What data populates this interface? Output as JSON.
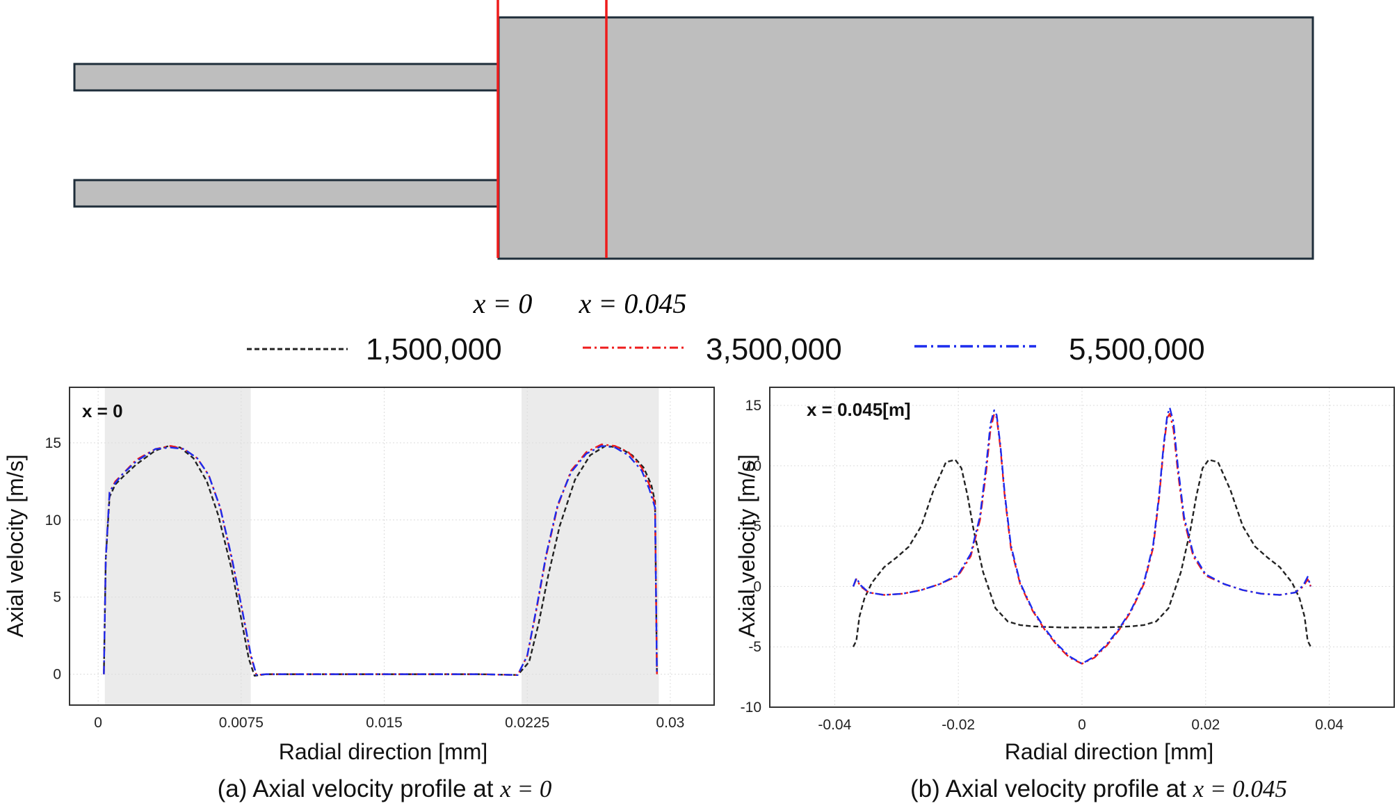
{
  "diagram": {
    "label_x0": "x = 0",
    "label_x045": "x = 0.045",
    "fill_color": "#bebebe",
    "outline_color": "#1e2d3a",
    "section_line_color": "#ee1c1c"
  },
  "legend": {
    "entries": [
      {
        "label": "1,500,000",
        "color": "#222222",
        "dash": "dashed"
      },
      {
        "label": "3,500,000",
        "color": "#ee1c1c",
        "dash": "dash-dot"
      },
      {
        "label": "5,500,000",
        "color": "#1c2cee",
        "dash": "dash-dot"
      }
    ]
  },
  "chart_data": [
    {
      "type": "line",
      "caption_prefix": "(a) Axial velocity profile at ",
      "caption_math": "x = 0",
      "inset_label": "x = 0",
      "xlabel": "Radial direction [mm]",
      "ylabel": "Axial velocity [m/s]",
      "xlim": [
        -0.0015,
        0.0323
      ],
      "ylim": [
        -2,
        18.6
      ],
      "xticks": [
        0,
        0.0075,
        0.015,
        0.0225,
        0.03
      ],
      "xtick_labels": [
        "0",
        "0.0075",
        "0.015",
        "0.0225",
        "0.03"
      ],
      "yticks": [
        0,
        5,
        10,
        15
      ],
      "ytick_labels": [
        "0",
        "5",
        "10",
        "15"
      ],
      "shaded_regions": [
        [
          0.00035,
          0.008
        ],
        [
          0.0222,
          0.0294
        ]
      ],
      "series": [
        {
          "name": "1,500,000",
          "color": "#222222",
          "dash": "dashed",
          "x": [
            0.0003,
            0.0004,
            0.0006,
            0.0009,
            0.0013,
            0.002,
            0.003,
            0.0037,
            0.0043,
            0.005,
            0.0057,
            0.0063,
            0.007,
            0.0075,
            0.0079,
            0.0082,
            0.0088,
            0.012,
            0.016,
            0.02,
            0.022,
            0.0226,
            0.0231,
            0.0236,
            0.0242,
            0.025,
            0.0258,
            0.0266,
            0.0273,
            0.028,
            0.0286,
            0.029,
            0.0292,
            0.0293
          ],
          "y": [
            0,
            7.5,
            11.5,
            12.3,
            12.8,
            13.6,
            14.5,
            14.8,
            14.7,
            14.0,
            12.5,
            10.3,
            6.8,
            3.6,
            1.0,
            -0.1,
            0,
            0,
            0,
            0,
            -0.05,
            0.8,
            3.3,
            6.4,
            9.6,
            12.6,
            14.2,
            14.8,
            14.7,
            14.2,
            13.4,
            12.3,
            11.2,
            0
          ]
        },
        {
          "name": "3,500,000",
          "color": "#ee1c1c",
          "dash": "dash-dot",
          "x": [
            0.0003,
            0.0004,
            0.0006,
            0.0009,
            0.0013,
            0.002,
            0.003,
            0.0038,
            0.0045,
            0.0052,
            0.0058,
            0.0064,
            0.007,
            0.0075,
            0.008,
            0.0083,
            0.0088,
            0.012,
            0.016,
            0.02,
            0.022,
            0.0225,
            0.023,
            0.0235,
            0.0241,
            0.0248,
            0.0256,
            0.0264,
            0.0271,
            0.0278,
            0.0285,
            0.0289,
            0.0292,
            0.0293
          ],
          "y": [
            0,
            7.5,
            11.8,
            12.5,
            13.0,
            13.9,
            14.6,
            14.8,
            14.6,
            14.0,
            12.9,
            10.8,
            7.5,
            4.5,
            1.2,
            -0.05,
            0,
            0,
            0,
            0,
            -0.05,
            1.2,
            4.3,
            7.7,
            10.9,
            13.2,
            14.4,
            14.9,
            14.8,
            14.4,
            13.4,
            12.3,
            11.0,
            0
          ]
        },
        {
          "name": "5,500,000",
          "color": "#1c2cee",
          "dash": "dash-dot",
          "x": [
            0.0003,
            0.0004,
            0.0006,
            0.0009,
            0.0013,
            0.002,
            0.003,
            0.0038,
            0.0045,
            0.0052,
            0.0058,
            0.0064,
            0.007,
            0.0075,
            0.008,
            0.0083,
            0.0088,
            0.012,
            0.016,
            0.02,
            0.022,
            0.0225,
            0.023,
            0.0235,
            0.0241,
            0.0248,
            0.0256,
            0.0264,
            0.0271,
            0.0278,
            0.0285,
            0.0289,
            0.0292,
            0.0293
          ],
          "y": [
            0,
            7.5,
            11.8,
            12.4,
            13.0,
            13.8,
            14.6,
            14.7,
            14.6,
            14.0,
            12.9,
            10.8,
            7.6,
            4.5,
            1.3,
            -0.05,
            0,
            0,
            0,
            0,
            -0.05,
            1.2,
            4.4,
            7.8,
            11.0,
            13.1,
            14.3,
            14.8,
            14.7,
            14.2,
            13.2,
            12.0,
            10.8,
            0
          ]
        }
      ]
    },
    {
      "type": "line",
      "caption_prefix": "(b) Axial velocity profile at ",
      "caption_math": "x = 0.045",
      "inset_label": "x = 0.045[m]",
      "xlabel": "Radial direction [mm]",
      "ylabel": "Axial velocity [m/s]",
      "xlim": [
        -0.0505,
        0.0505
      ],
      "ylim": [
        -10,
        16.5
      ],
      "xticks": [
        -0.04,
        -0.02,
        0,
        0.02,
        0.04
      ],
      "xtick_labels": [
        "-0.04",
        "-0.02",
        "0",
        "0.02",
        "0.04"
      ],
      "yticks": [
        -10,
        -5,
        0,
        5,
        10,
        15
      ],
      "ytick_labels": [
        "-10",
        "-5",
        "0",
        "5",
        "10",
        "15"
      ],
      "series": [
        {
          "name": "1,500,000",
          "color": "#222222",
          "dash": "dashed",
          "x": [
            -0.037,
            -0.0365,
            -0.036,
            -0.0352,
            -0.034,
            -0.032,
            -0.03,
            -0.028,
            -0.026,
            -0.024,
            -0.022,
            -0.0205,
            -0.0195,
            -0.0185,
            -0.0175,
            -0.016,
            -0.014,
            -0.012,
            -0.01,
            -0.008,
            -0.006,
            -0.003,
            0,
            0.003,
            0.006,
            0.008,
            0.01,
            0.012,
            0.014,
            0.016,
            0.0175,
            0.0185,
            0.0195,
            0.0205,
            0.022,
            0.024,
            0.026,
            0.028,
            0.03,
            0.032,
            0.034,
            0.0352,
            0.036,
            0.0365,
            0.037
          ],
          "y": [
            -5.0,
            -4.5,
            -2.5,
            -1.0,
            0.3,
            1.6,
            2.4,
            3.3,
            5.0,
            8.0,
            10.3,
            10.5,
            9.8,
            7.5,
            4.6,
            1.2,
            -1.8,
            -2.9,
            -3.2,
            -3.3,
            -3.35,
            -3.4,
            -3.4,
            -3.4,
            -3.35,
            -3.3,
            -3.2,
            -2.9,
            -1.8,
            1.2,
            4.6,
            7.5,
            9.8,
            10.5,
            10.3,
            8.0,
            5.0,
            3.3,
            2.4,
            1.6,
            0.3,
            -1.0,
            -2.5,
            -4.5,
            -5.0
          ]
        },
        {
          "name": "3,500,000",
          "color": "#ee1c1c",
          "dash": "dash-dot",
          "x": [
            -0.037,
            -0.0365,
            -0.0358,
            -0.0345,
            -0.032,
            -0.029,
            -0.026,
            -0.023,
            -0.02,
            -0.018,
            -0.0165,
            -0.0155,
            -0.0148,
            -0.0142,
            -0.0138,
            -0.0132,
            -0.0125,
            -0.0115,
            -0.01,
            -0.008,
            -0.006,
            -0.004,
            -0.002,
            0,
            0.002,
            0.004,
            0.006,
            0.008,
            0.01,
            0.0115,
            0.0125,
            0.0132,
            0.0138,
            0.0142,
            0.0148,
            0.0155,
            0.0165,
            0.018,
            0.02,
            0.023,
            0.026,
            0.029,
            0.032,
            0.0345,
            0.0358,
            0.0365,
            0.037
          ],
          "y": [
            0,
            0.6,
            0.0,
            -0.5,
            -0.7,
            -0.6,
            -0.3,
            0.2,
            0.9,
            2.5,
            5.5,
            9.5,
            13.0,
            14.3,
            14.0,
            11.5,
            7.5,
            3.2,
            0.2,
            -2.0,
            -3.6,
            -4.9,
            -5.9,
            -6.4,
            -5.9,
            -4.9,
            -3.6,
            -2.0,
            0.2,
            3.2,
            7.5,
            11.5,
            14.0,
            14.3,
            13.0,
            9.5,
            5.5,
            2.5,
            0.9,
            0.2,
            -0.3,
            -0.6,
            -0.7,
            -0.5,
            0.0,
            0.6,
            0
          ]
        },
        {
          "name": "5,500,000",
          "color": "#1c2cee",
          "dash": "dash-dot",
          "x": [
            -0.037,
            -0.0365,
            -0.0358,
            -0.0345,
            -0.032,
            -0.029,
            -0.026,
            -0.023,
            -0.02,
            -0.018,
            -0.0165,
            -0.0155,
            -0.0148,
            -0.0142,
            -0.0138,
            -0.0132,
            -0.0125,
            -0.0115,
            -0.01,
            -0.008,
            -0.006,
            -0.004,
            -0.002,
            0,
            0.002,
            0.004,
            0.006,
            0.008,
            0.01,
            0.0115,
            0.0125,
            0.0132,
            0.0138,
            0.0142,
            0.0148,
            0.0155,
            0.0165,
            0.018,
            0.02,
            0.023,
            0.026,
            0.029,
            0.032,
            0.0345,
            0.0358,
            0.0365,
            0.037
          ],
          "y": [
            0,
            0.7,
            0.1,
            -0.5,
            -0.7,
            -0.6,
            -0.3,
            0.2,
            1.0,
            2.7,
            5.8,
            10.0,
            13.5,
            14.6,
            14.2,
            11.7,
            7.7,
            3.4,
            0.3,
            -1.9,
            -3.5,
            -4.8,
            -5.8,
            -6.4,
            -5.8,
            -4.8,
            -3.5,
            -1.9,
            0.3,
            3.4,
            7.7,
            11.7,
            14.2,
            14.8,
            13.6,
            10.0,
            5.8,
            2.7,
            1.0,
            0.2,
            -0.3,
            -0.6,
            -0.7,
            -0.5,
            0.1,
            0.8,
            0
          ]
        }
      ]
    }
  ]
}
